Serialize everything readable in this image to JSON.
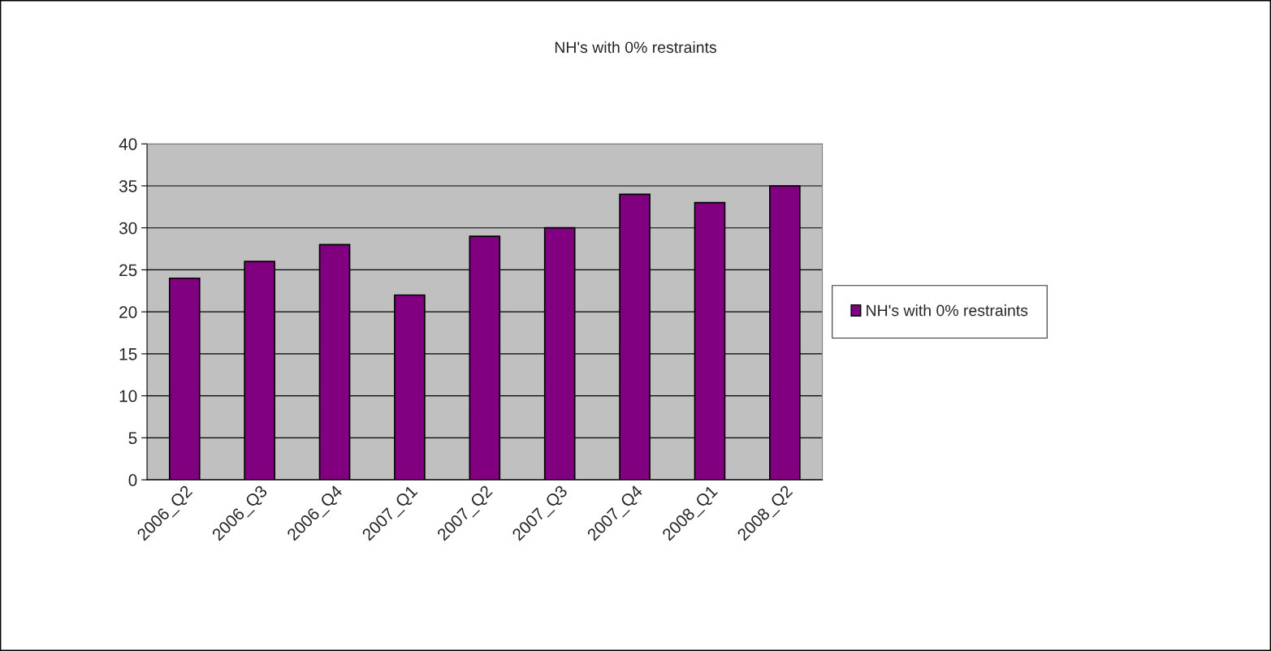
{
  "chart_data": {
    "type": "bar",
    "title": "NH's with 0% restraints",
    "categories": [
      "2006_Q2",
      "2006_Q3",
      "2006_Q4",
      "2007_Q1",
      "2007_Q2",
      "2007_Q3",
      "2007_Q4",
      "2008_Q1",
      "2008_Q2"
    ],
    "series": [
      {
        "name": "NH's with 0% restraints",
        "color": "#800080",
        "values": [
          24,
          26,
          28,
          22,
          29,
          30,
          34,
          33,
          35
        ]
      }
    ],
    "ylim": [
      0,
      40
    ],
    "yticks": [
      0,
      5,
      10,
      15,
      20,
      25,
      30,
      35,
      40
    ],
    "grid": "y",
    "legend": "right"
  }
}
